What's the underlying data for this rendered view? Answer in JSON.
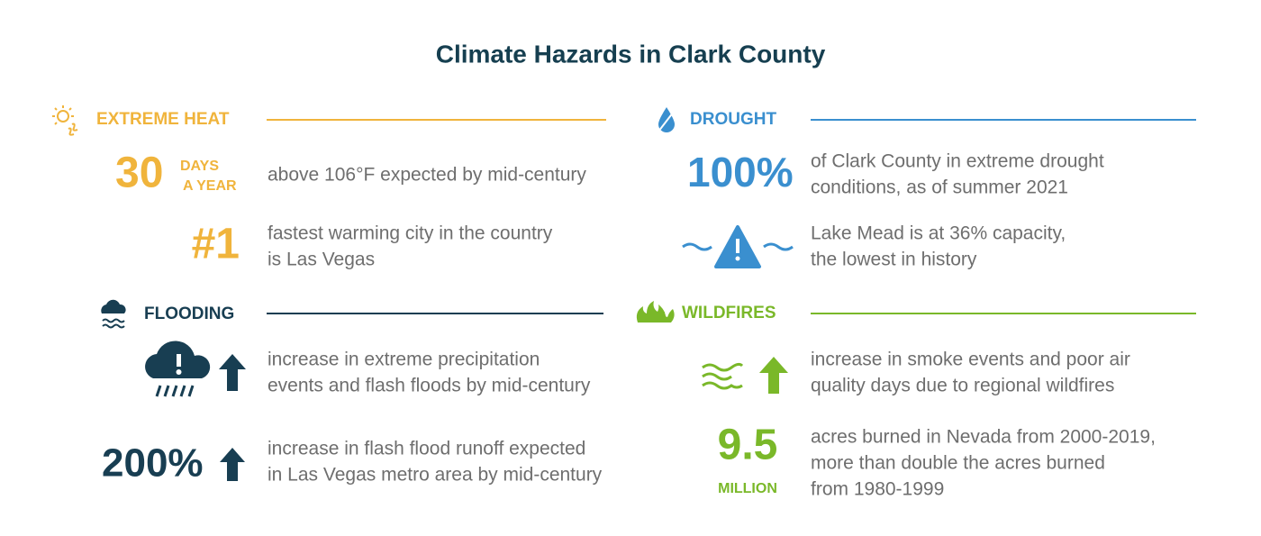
{
  "title": "Climate Hazards in Clark County",
  "sections": [
    {
      "heading": "EXTREME HEAT",
      "items": [
        {
          "stat": "30",
          "unit": [
            "DAYS",
            "A YEAR"
          ],
          "text": [
            "above 106°F expected by mid-century"
          ]
        },
        {
          "stat": "#1",
          "text": [
            "fastest warming city in the country",
            "is Las Vegas"
          ]
        }
      ]
    },
    {
      "heading": "DROUGHT",
      "items": [
        {
          "stat": "100%",
          "text": [
            "of Clark County in extreme drought",
            "conditions, as of summer 2021"
          ]
        },
        {
          "text": [
            "Lake Mead is at 36% capacity,",
            "the lowest in history"
          ]
        }
      ]
    },
    {
      "heading": "FLOODING",
      "items": [
        {
          "text": [
            "increase in extreme precipitation",
            "events and flash floods by mid-century"
          ]
        },
        {
          "stat": "200%",
          "text": [
            "increase in flash flood runoff expected",
            "in Las Vegas metro area by mid-century"
          ]
        }
      ]
    },
    {
      "heading": "WILDFIRES",
      "items": [
        {
          "text": [
            "increase in smoke events and poor air",
            "quality days due to regional wildfires"
          ]
        },
        {
          "stat": "9.5",
          "unit": [
            "MILLION"
          ],
          "text": [
            "acres burned in Nevada from 2000-2019,",
            "more than double the acres burned",
            "from 1980-1999"
          ]
        }
      ]
    }
  ]
}
